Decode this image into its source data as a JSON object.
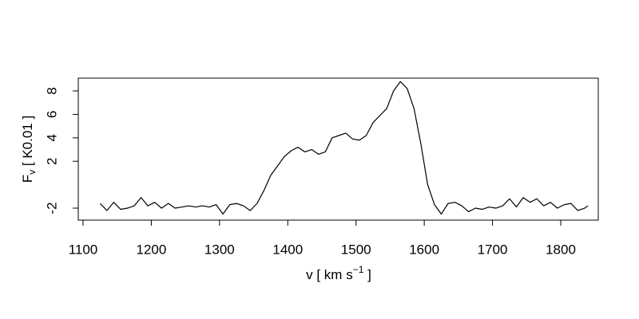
{
  "chart_data": {
    "type": "line",
    "xlabel": {
      "main": "v [ km s",
      "sup": "−1",
      "end": " ]"
    },
    "ylabel": {
      "main": "F",
      "sub": "v",
      "end": " [ K0.01 ]"
    },
    "x": [
      1125,
      1135,
      1145,
      1155,
      1165,
      1175,
      1185,
      1195,
      1205,
      1215,
      1225,
      1235,
      1245,
      1255,
      1265,
      1275,
      1285,
      1295,
      1305,
      1315,
      1325,
      1335,
      1345,
      1355,
      1365,
      1375,
      1385,
      1395,
      1405,
      1415,
      1425,
      1435,
      1445,
      1455,
      1465,
      1475,
      1485,
      1495,
      1505,
      1515,
      1525,
      1535,
      1545,
      1555,
      1565,
      1575,
      1585,
      1595,
      1605,
      1615,
      1625,
      1635,
      1645,
      1655,
      1665,
      1675,
      1685,
      1695,
      1705,
      1715,
      1725,
      1735,
      1745,
      1755,
      1765,
      1775,
      1785,
      1795,
      1805,
      1815,
      1825,
      1835,
      1840
    ],
    "series": [
      {
        "color": "#000000",
        "values": [
          -1.6,
          -2.2,
          -1.5,
          -2.1,
          -2.0,
          -1.8,
          -1.1,
          -1.8,
          -1.5,
          -2.0,
          -1.6,
          -2.0,
          -1.9,
          -1.8,
          -1.9,
          -1.8,
          -1.9,
          -1.7,
          -2.5,
          -1.7,
          -1.6,
          -1.8,
          -2.2,
          -1.6,
          -0.5,
          0.8,
          1.6,
          2.4,
          2.9,
          3.2,
          2.8,
          3.0,
          2.6,
          2.8,
          4.0,
          4.2,
          4.4,
          3.9,
          3.8,
          4.2,
          5.3,
          5.9,
          6.5,
          8.0,
          8.8,
          8.2,
          6.5,
          3.5,
          0.0,
          -1.7,
          -2.5,
          -1.6,
          -1.5,
          -1.8,
          -2.3,
          -2.0,
          -2.1,
          -1.9,
          -2.0,
          -1.8,
          -1.2,
          -1.9,
          -1.1,
          -1.5,
          -1.2,
          -1.8,
          -1.5,
          -2.0,
          -1.7,
          -1.6,
          -2.2,
          -2.0,
          -1.8
        ]
      }
    ],
    "xlim": [
      1093,
      1855
    ],
    "ylim": [
      -3.02,
      9.09
    ],
    "xticks": [
      1100,
      1200,
      1300,
      1400,
      1500,
      1600,
      1700,
      1800
    ],
    "yticks": [
      -2,
      2,
      4,
      6,
      8
    ]
  }
}
